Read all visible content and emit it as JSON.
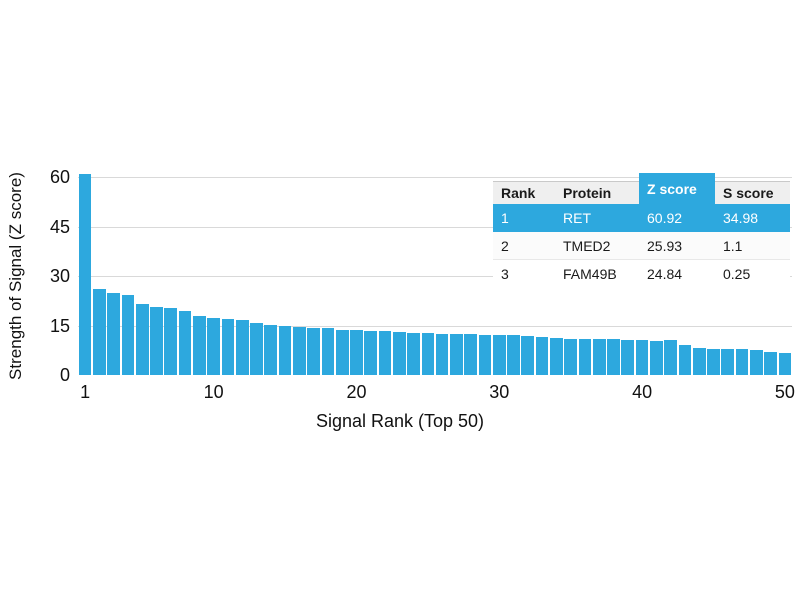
{
  "colors": {
    "bar": "#2da8de",
    "grid": "#d9d9d9",
    "text": "#111111",
    "table_header_bg": "#efefef",
    "table_highlight": "#2da8de"
  },
  "chart_data": {
    "type": "bar",
    "title": "",
    "xlabel": "Signal Rank (Top 50)",
    "ylabel": "Strength of Signal (Z score)",
    "n_bars": 50,
    "x_start": 1,
    "x_end": 50,
    "values": [
      60.92,
      25.93,
      24.84,
      24.3,
      21.6,
      20.7,
      20.4,
      19.5,
      17.9,
      17.3,
      17.1,
      16.8,
      15.7,
      15.1,
      14.8,
      14.5,
      14.3,
      14.1,
      13.6,
      13.5,
      13.3,
      13.2,
      12.9,
      12.7,
      12.6,
      12.5,
      12.4,
      12.3,
      12.2,
      12.1,
      12.0,
      11.8,
      11.5,
      11.2,
      11.0,
      10.9,
      10.8,
      10.8,
      10.7,
      10.5,
      10.4,
      10.6,
      9.2,
      8.3,
      8.0,
      7.9,
      7.8,
      7.7,
      7.1,
      6.8
    ],
    "yticks": [
      0,
      15,
      30,
      45,
      60
    ],
    "xticks": [
      1,
      10,
      20,
      30,
      40,
      50
    ],
    "ylim": [
      0,
      60
    ],
    "grid": "horizontal gridlines at 15, 30, 45, 60",
    "legend": "none"
  },
  "table": {
    "headers": [
      "Rank",
      "Protein",
      "Z score",
      "S score"
    ],
    "rows": [
      [
        "1",
        "RET",
        "60.92",
        "34.98"
      ],
      [
        "2",
        "TMED2",
        "25.93",
        "1.1"
      ],
      [
        "3",
        "FAM49B",
        "24.84",
        "0.25"
      ]
    ],
    "highlighted_row_index": 0,
    "highlighted_header": "Z score"
  }
}
